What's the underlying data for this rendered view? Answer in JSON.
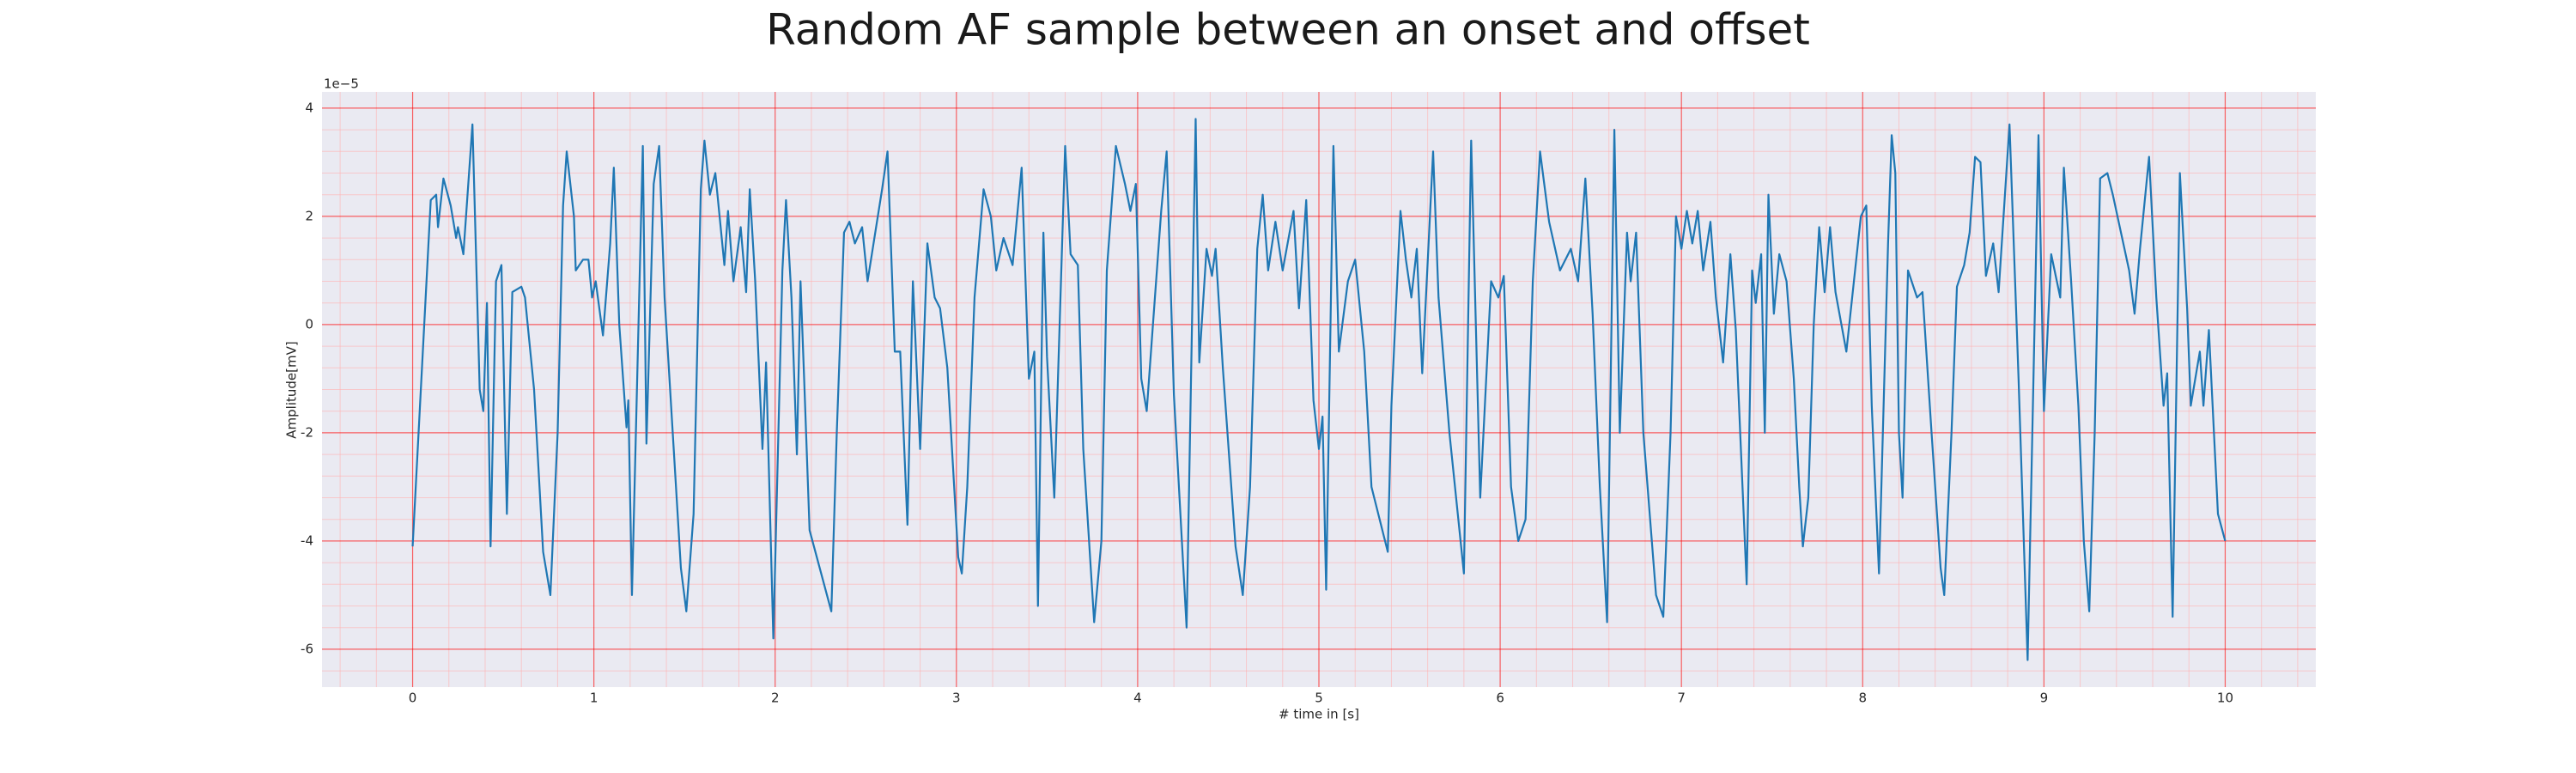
{
  "chart_data": {
    "type": "line",
    "title": "Random AF sample between an onset and offset",
    "xlabel": "# time in [s]",
    "ylabel": "Amplitude[mV]",
    "y_offset_label": "1e−5",
    "color": "#1f77b4",
    "grid": true,
    "minor_grid": true,
    "xlim": [
      -0.5,
      10.5
    ],
    "ylim": [
      -6.7,
      4.3
    ],
    "xticks": [
      0,
      1,
      2,
      3,
      4,
      5,
      6,
      7,
      8,
      9,
      10
    ],
    "yticks": [
      -6,
      -4,
      -2,
      0,
      2,
      4
    ],
    "x": [
      0,
      0.1,
      0.13,
      0.14,
      0.17,
      0.21,
      0.24,
      0.25,
      0.28,
      0.33,
      0.34,
      0.37,
      0.39,
      0.41,
      0.43,
      0.46,
      0.49,
      0.52,
      0.55,
      0.6,
      0.62,
      0.67,
      0.72,
      0.76,
      0.8,
      0.83,
      0.85,
      0.89,
      0.9,
      0.94,
      0.97,
      0.99,
      1.01,
      1.05,
      1.09,
      1.11,
      1.14,
      1.18,
      1.19,
      1.21,
      1.27,
      1.29,
      1.33,
      1.36,
      1.39,
      1.48,
      1.51,
      1.55,
      1.59,
      1.61,
      1.64,
      1.67,
      1.72,
      1.74,
      1.77,
      1.81,
      1.84,
      1.86,
      1.89,
      1.93,
      1.95,
      1.99,
      2.04,
      2.06,
      2.09,
      2.12,
      2.14,
      2.16,
      2.19,
      2.31,
      2.34,
      2.38,
      2.41,
      2.44,
      2.48,
      2.51,
      2.59,
      2.62,
      2.66,
      2.69,
      2.73,
      2.76,
      2.8,
      2.84,
      2.88,
      2.91,
      2.95,
      3.01,
      3.03,
      3.06,
      3.1,
      3.15,
      3.19,
      3.22,
      3.26,
      3.31,
      3.36,
      3.4,
      3.43,
      3.45,
      3.48,
      3.5,
      3.54,
      3.6,
      3.63,
      3.67,
      3.7,
      3.76,
      3.8,
      3.83,
      3.88,
      3.93,
      3.96,
      3.99,
      4.02,
      4.05,
      4.08,
      4.13,
      4.16,
      4.2,
      4.27,
      4.32,
      4.34,
      4.38,
      4.41,
      4.43,
      4.47,
      4.54,
      4.58,
      4.62,
      4.66,
      4.69,
      4.72,
      4.76,
      4.8,
      4.86,
      4.89,
      4.93,
      4.97,
      5.0,
      5.02,
      5.04,
      5.08,
      5.11,
      5.16,
      5.2,
      5.25,
      5.29,
      5.38,
      5.4,
      5.45,
      5.48,
      5.51,
      5.54,
      5.57,
      5.63,
      5.66,
      5.72,
      5.8,
      5.84,
      5.89,
      5.95,
      5.99,
      6.02,
      6.06,
      6.1,
      6.14,
      6.18,
      6.22,
      6.27,
      6.33,
      6.39,
      6.43,
      6.47,
      6.51,
      6.55,
      6.59,
      6.63,
      6.66,
      6.7,
      6.72,
      6.75,
      6.79,
      6.86,
      6.9,
      6.94,
      6.97,
      7.0,
      7.03,
      7.06,
      7.09,
      7.12,
      7.16,
      7.19,
      7.23,
      7.27,
      7.3,
      7.36,
      7.39,
      7.41,
      7.44,
      7.46,
      7.48,
      7.51,
      7.54,
      7.58,
      7.62,
      7.65,
      7.67,
      7.7,
      7.73,
      7.76,
      7.79,
      7.82,
      7.85,
      7.91,
      7.99,
      8.02,
      8.05,
      8.09,
      8.14,
      8.16,
      8.18,
      8.2,
      8.22,
      8.25,
      8.3,
      8.33,
      8.38,
      8.43,
      8.45,
      8.49,
      8.52,
      8.56,
      8.59,
      8.62,
      8.65,
      8.68,
      8.72,
      8.75,
      8.81,
      8.86,
      8.91,
      8.97,
      9.0,
      9.04,
      9.09,
      9.11,
      9.15,
      9.19,
      9.22,
      9.25,
      9.28,
      9.31,
      9.35,
      9.38,
      9.47,
      9.5,
      9.53,
      9.58,
      9.62,
      9.66,
      9.68,
      9.71,
      9.75,
      9.79,
      9.81,
      9.86,
      9.88,
      9.91,
      9.96,
      10.0
    ],
    "values": [
      -4.1,
      2.3,
      2.4,
      1.8,
      2.7,
      2.2,
      1.6,
      1.8,
      1.3,
      3.7,
      2.5,
      -1.2,
      -1.6,
      0.4,
      -4.1,
      0.8,
      1.1,
      -3.5,
      0.6,
      0.7,
      0.5,
      -1.2,
      -4.2,
      -5.0,
      -2,
      2.2,
      3.2,
      2.0,
      1.0,
      1.2,
      1.2,
      0.5,
      0.8,
      -0.2,
      1.5,
      2.9,
      0,
      -1.9,
      -1.4,
      -5.0,
      3.3,
      -2.2,
      2.6,
      3.3,
      0.5,
      -4.5,
      -5.3,
      -3.5,
      2.5,
      3.4,
      2.4,
      2.8,
      1.1,
      2.1,
      0.8,
      1.8,
      0.6,
      2.5,
      0.8,
      -2.3,
      -0.7,
      -5.8,
      1.0,
      2.3,
      0.5,
      -2.4,
      0.8,
      -1,
      -3.8,
      -5.3,
      -2,
      1.7,
      1.9,
      1.5,
      1.8,
      0.8,
      2.5,
      3.2,
      -0.5,
      -0.5,
      -3.7,
      0.8,
      -2.3,
      1.5,
      0.5,
      0.3,
      -0.8,
      -4.3,
      -4.6,
      -3,
      0.5,
      2.5,
      2.0,
      1.0,
      1.6,
      1.1,
      2.9,
      -1.0,
      -0.5,
      -5.2,
      1.7,
      -0.6,
      -3.2,
      3.3,
      1.3,
      1.1,
      -2.3,
      -5.5,
      -4,
      1.0,
      3.3,
      2.6,
      2.1,
      2.6,
      -1,
      -1.6,
      -0.2,
      2.1,
      3.2,
      -1.3,
      -5.6,
      3.8,
      -0.7,
      1.4,
      0.9,
      1.4,
      -0.8,
      -4.1,
      -5.0,
      -3,
      1.4,
      2.4,
      1.0,
      1.9,
      1.0,
      2.1,
      0.3,
      2.3,
      -1.4,
      -2.3,
      -1.7,
      -4.9,
      3.3,
      -0.5,
      0.8,
      1.2,
      -0.5,
      -3,
      -4.2,
      -1.5,
      2.1,
      1.2,
      0.5,
      1.4,
      -0.9,
      3.2,
      0.5,
      -2,
      -4.6,
      3.4,
      -3.2,
      0.8,
      0.5,
      0.9,
      -3,
      -4.0,
      -3.6,
      0.8,
      3.2,
      1.9,
      1.0,
      1.4,
      0.8,
      2.7,
      0.2,
      -3,
      -5.5,
      3.6,
      -2,
      1.7,
      0.8,
      1.7,
      -2,
      -5.0,
      -5.4,
      -2,
      2.0,
      1.4,
      2.1,
      1.5,
      2.1,
      1.0,
      1.9,
      0.5,
      -0.7,
      1.3,
      -0.1,
      -4.8,
      1.0,
      0.4,
      1.3,
      -2,
      2.4,
      0.2,
      1.3,
      0.8,
      -1,
      -3,
      -4.1,
      -3.2,
      0,
      1.8,
      0.6,
      1.8,
      0.6,
      -0.5,
      2.0,
      2.2,
      -1.5,
      -4.6,
      1.5,
      3.5,
      2.8,
      -2,
      -3.2,
      1.0,
      0.5,
      0.6,
      -2,
      -4.5,
      -5.0,
      -2,
      0.7,
      1.1,
      1.7,
      3.1,
      3.0,
      0.9,
      1.5,
      0.6,
      3.7,
      -1,
      -6.2,
      3.5,
      -1.6,
      1.3,
      0.5,
      2.9,
      0.8,
      -1.5,
      -4,
      -5.3,
      -2,
      2.7,
      2.8,
      2.4,
      1.0,
      0.2,
      1.4,
      3.1,
      0.5,
      -1.5,
      -0.9,
      -5.4,
      2.8,
      0.3,
      -1.5,
      -0.5,
      -1.5,
      -0.1,
      -3.5,
      -4.0
    ]
  }
}
